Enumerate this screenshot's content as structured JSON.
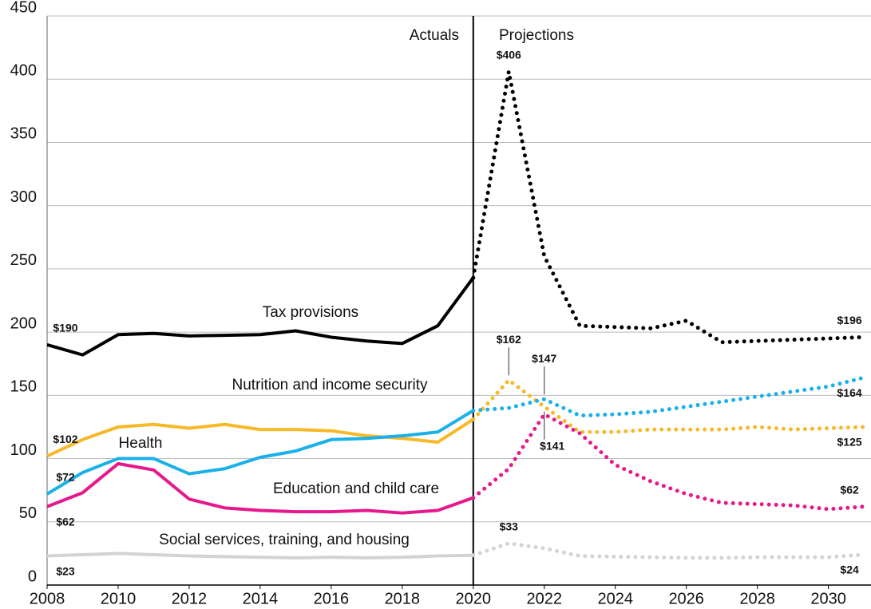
{
  "chart_data": {
    "type": "line",
    "annotations": [
      "Actuals",
      "Projections"
    ],
    "divider_x": 2020,
    "x": [
      2008,
      2009,
      2010,
      2011,
      2012,
      2013,
      2014,
      2015,
      2016,
      2017,
      2018,
      2019,
      2020,
      2021,
      2022,
      2023,
      2024,
      2025,
      2026,
      2027,
      2028,
      2029,
      2030,
      2031
    ],
    "series": [
      {
        "name": "Tax provisions",
        "color": "#000000",
        "values": [
          190,
          182,
          198,
          199,
          197,
          197.5,
          198,
          201,
          196,
          193,
          191,
          205,
          243,
          406,
          260,
          205,
          204,
          203,
          209,
          192,
          193,
          194,
          195,
          196
        ],
        "value_labels": [
          "$190",
          null,
          null,
          null,
          null,
          null,
          null,
          null,
          null,
          null,
          null,
          null,
          null,
          "$406",
          null,
          null,
          null,
          null,
          null,
          null,
          null,
          null,
          null,
          "$196"
        ]
      },
      {
        "name": "Nutrition and income security",
        "color": "#f7b928",
        "values": [
          102,
          115,
          125,
          127,
          124,
          127,
          123,
          123,
          122,
          118,
          116,
          113,
          131,
          162,
          141,
          121,
          121,
          123,
          123,
          123,
          125,
          123,
          124,
          125
        ],
        "value_labels": [
          "$102",
          null,
          null,
          null,
          null,
          null,
          null,
          null,
          null,
          null,
          null,
          null,
          null,
          "$162",
          "$141",
          null,
          null,
          null,
          null,
          null,
          null,
          null,
          null,
          "$125"
        ]
      },
      {
        "name": "Health",
        "color": "#1ab0e8",
        "values": [
          72,
          89,
          100,
          100,
          88,
          92,
          101,
          106,
          115,
          116,
          118,
          121,
          138,
          140,
          147,
          134,
          135,
          137,
          141,
          145,
          149,
          153,
          157,
          164
        ],
        "value_labels": [
          "$72",
          null,
          null,
          null,
          null,
          null,
          null,
          null,
          null,
          null,
          null,
          null,
          null,
          null,
          "$147",
          null,
          null,
          null,
          null,
          null,
          null,
          null,
          null,
          "$164"
        ]
      },
      {
        "name": "Education and child care",
        "color": "#e6198c",
        "values": [
          62,
          73,
          96,
          91,
          68,
          61,
          59,
          58,
          58,
          59,
          57,
          59,
          69,
          92,
          135,
          120,
          95,
          82,
          72,
          65,
          64,
          63,
          60,
          62
        ],
        "value_labels": [
          "$62",
          null,
          null,
          null,
          null,
          null,
          null,
          null,
          null,
          null,
          null,
          null,
          null,
          null,
          null,
          null,
          null,
          null,
          null,
          null,
          null,
          null,
          null,
          "$62"
        ]
      },
      {
        "name": "Social services, training, and housing",
        "color": "#d3d3d3",
        "values": [
          23,
          24,
          25,
          24,
          23,
          22.5,
          22,
          21.5,
          22,
          21.5,
          22,
          23,
          23.5,
          33,
          29,
          23,
          22.5,
          22,
          21.5,
          21.5,
          22,
          22,
          22,
          24
        ],
        "value_labels": [
          "$23",
          null,
          null,
          null,
          null,
          null,
          null,
          null,
          null,
          null,
          null,
          null,
          null,
          "$33",
          null,
          null,
          null,
          null,
          null,
          null,
          null,
          null,
          null,
          "$24"
        ]
      }
    ],
    "xlim": [
      2008,
      2031.2
    ],
    "xticks": [
      2008,
      2010,
      2012,
      2014,
      2016,
      2018,
      2020,
      2022,
      2024,
      2026,
      2028,
      2030
    ],
    "ylim": [
      0,
      450
    ],
    "yticks": [
      0,
      50,
      100,
      150,
      200,
      250,
      300,
      350,
      400,
      450
    ],
    "grid": true
  }
}
